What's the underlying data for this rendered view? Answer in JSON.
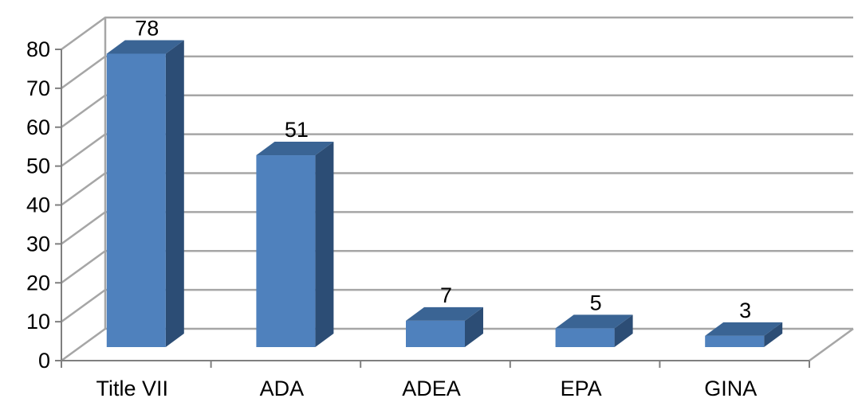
{
  "chart_data": {
    "type": "bar",
    "style": "3d-column",
    "categories": [
      "Title VII",
      "ADA",
      "ADEA",
      "EPA",
      "GINA"
    ],
    "values": [
      78,
      51,
      7,
      5,
      3
    ],
    "data_labels": [
      "78",
      "51",
      "7",
      "5",
      "3"
    ],
    "y_ticks": [
      "0",
      "10",
      "20",
      "30",
      "40",
      "50",
      "60",
      "70",
      "80"
    ],
    "ylim": [
      0,
      80
    ],
    "ystep": 10,
    "grid": true,
    "legend": "none",
    "colors": {
      "bar_front": "#4F81BD",
      "bar_side": "#2C4D75",
      "bar_top": "#3A6494",
      "gridline": "#A6A6A6",
      "axis": "#7F7F7F",
      "text": "#000000"
    }
  }
}
